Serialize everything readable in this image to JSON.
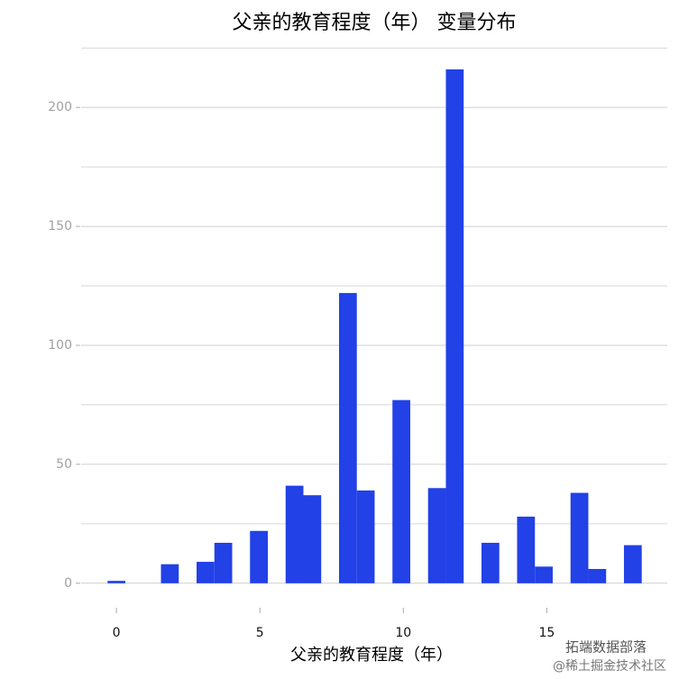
{
  "chart_data": {
    "type": "histogram",
    "title": "父亲的教育程度（年） 变量分布",
    "x_label": "父亲的教育程度（年）",
    "bins": [
      -0.3103,
      0.3103,
      0.931,
      1.5517,
      2.1724,
      2.7931,
      3.4138,
      4.0345,
      4.6552,
      5.2759,
      5.8966,
      6.5172,
      7.1379,
      7.7586,
      8.3793,
      9.0,
      9.6207,
      10.2414,
      10.8621,
      11.4828,
      12.1034,
      12.7241,
      13.3448,
      13.9655,
      14.5862,
      15.2069,
      15.8276,
      16.4483,
      17.069,
      17.6897,
      18.3103
    ],
    "values": [
      1,
      0,
      0,
      8,
      0,
      9,
      17,
      0,
      22,
      0,
      41,
      37,
      0,
      122,
      39,
      0,
      77,
      0,
      40,
      216,
      0,
      17,
      0,
      28,
      7,
      0,
      38,
      6,
      0,
      16
    ],
    "color": "#2241e6",
    "xlim": [
      -1.23,
      19.2
    ],
    "xticks": [
      0,
      5,
      10,
      15
    ],
    "ylim": [
      -5,
      230
    ],
    "yticks": [
      0,
      50,
      100,
      150,
      200
    ],
    "y_minor_grid": [
      25,
      75,
      125,
      175,
      225
    ],
    "grid": true,
    "annotations": [
      "拓端数据部落",
      "@稀土掘金技术社区"
    ]
  }
}
